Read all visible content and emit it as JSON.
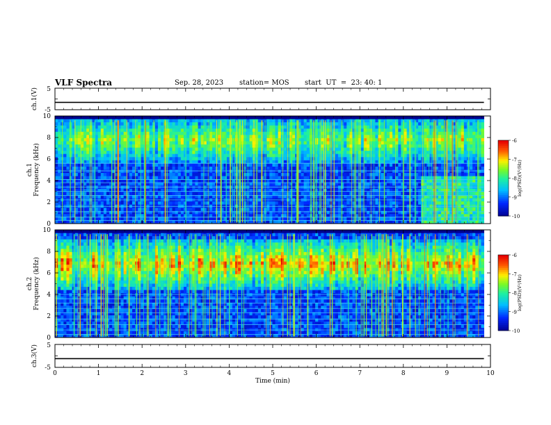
{
  "header": {
    "title": "VLF Spectra",
    "date": "Sep. 28, 2023",
    "station": "station= MOS",
    "start": "start  UT  =  23: 40: 1"
  },
  "chart_data": [
    {
      "type": "line",
      "panel": "ch1-voltage",
      "ylabel": "ch.1(V)",
      "ylim": [
        -5,
        5
      ],
      "yticks": [
        "5",
        "-5"
      ],
      "xlim": [
        0,
        10
      ],
      "series": [
        {
          "x": [
            0,
            9.85
          ],
          "values": [
            -1.6,
            -1.6
          ]
        }
      ]
    },
    {
      "type": "heatmap",
      "panel": "ch1-spectrogram",
      "ylabel": "ch.1\nFrequency  (kHz)",
      "ylim": [
        0,
        10
      ],
      "yticks": [
        "0",
        "2",
        "4",
        "6",
        "8",
        "10"
      ],
      "xlim": [
        0,
        10
      ],
      "data_end_min": 9.85,
      "band_khz": [
        5.5,
        10
      ],
      "band_level": -7.2,
      "background_level": -9.6,
      "lines_khz": [
        0.3,
        0.6,
        1.1,
        1.6,
        2.2,
        2.6,
        3.0,
        3.4,
        3.8,
        4.1,
        4.9,
        5.6
      ],
      "disturbance_after_min": 8.4,
      "colorbar": {
        "label": "log(PSD)(V²/Hz)",
        "ticks": [
          "-6",
          "-7",
          "-8",
          "-9",
          "-10"
        ],
        "range": [
          -10,
          -6
        ]
      }
    },
    {
      "type": "heatmap",
      "panel": "ch2-spectrogram",
      "ylabel": "ch.2\nFrequency  (kHz)",
      "ylim": [
        0,
        10
      ],
      "yticks": [
        "0",
        "2",
        "4",
        "6",
        "8",
        "10"
      ],
      "xlim": [
        0,
        10
      ],
      "data_end_min": 9.85,
      "band_khz": [
        4.3,
        9.2
      ],
      "band_center_khz": 6.8,
      "band_level": -6.5,
      "background_level": -9.6,
      "lines_khz": [
        0.3,
        0.7,
        1.2,
        1.7,
        2.3,
        2.7,
        3.2,
        3.6,
        4.0
      ],
      "colorbar": {
        "label": "log(PSD)(V²/Hz)",
        "ticks": [
          "-6",
          "-7",
          "-8",
          "-9",
          "-10"
        ],
        "range": [
          -10,
          -6
        ]
      }
    },
    {
      "type": "line",
      "panel": "ch3-voltage",
      "ylabel": "ch.3(V)",
      "ylim": [
        -5,
        5
      ],
      "yticks": [
        "5",
        "-5"
      ],
      "xlim": [
        0,
        10
      ],
      "xlabel": "Time  (min)",
      "xticks": [
        "0",
        "1",
        "2",
        "3",
        "4",
        "5",
        "6",
        "7",
        "8",
        "9",
        "10"
      ],
      "series": [
        {
          "x": [
            0,
            9.85
          ],
          "values": [
            -1.2,
            -1.2
          ]
        }
      ]
    }
  ]
}
